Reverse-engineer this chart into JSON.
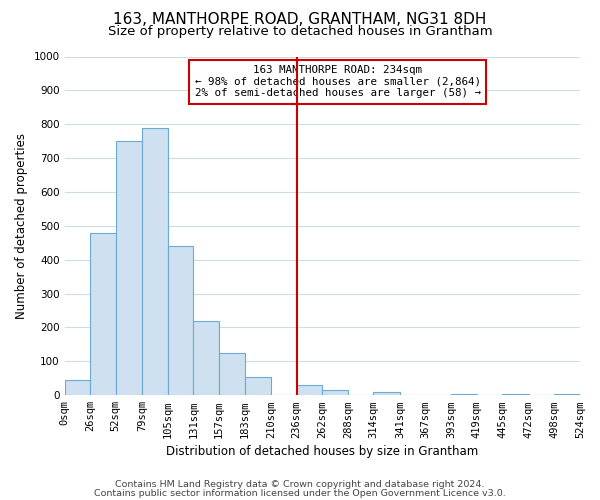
{
  "title": "163, MANTHORPE ROAD, GRANTHAM, NG31 8DH",
  "subtitle": "Size of property relative to detached houses in Grantham",
  "xlabel": "Distribution of detached houses by size in Grantham",
  "ylabel": "Number of detached properties",
  "bar_left_edges": [
    0,
    26,
    52,
    79,
    105,
    131,
    157,
    183,
    210,
    236,
    262,
    288,
    314,
    341,
    367,
    393,
    419,
    445,
    472,
    498
  ],
  "bar_widths": [
    26,
    26,
    27,
    26,
    26,
    26,
    26,
    27,
    26,
    26,
    26,
    26,
    27,
    26,
    26,
    26,
    26,
    27,
    26,
    26
  ],
  "bar_heights": [
    45,
    480,
    750,
    790,
    440,
    220,
    125,
    55,
    0,
    30,
    15,
    0,
    10,
    0,
    0,
    5,
    0,
    5,
    0,
    5
  ],
  "bar_color": "#cfe0f0",
  "bar_edge_color": "#6aaad4",
  "vline_x": 236,
  "vline_color": "#cc0000",
  "annotation_text_line1": "163 MANTHORPE ROAD: 234sqm",
  "annotation_text_line2": "← 98% of detached houses are smaller (2,864)",
  "annotation_text_line3": "2% of semi-detached houses are larger (58) →",
  "ylim": [
    0,
    1000
  ],
  "yticks": [
    0,
    100,
    200,
    300,
    400,
    500,
    600,
    700,
    800,
    900,
    1000
  ],
  "xtick_positions": [
    0,
    26,
    52,
    79,
    105,
    131,
    157,
    183,
    210,
    236,
    262,
    288,
    314,
    341,
    367,
    393,
    419,
    445,
    472,
    498,
    524
  ],
  "xtick_labels": [
    "0sqm",
    "26sqm",
    "52sqm",
    "79sqm",
    "105sqm",
    "131sqm",
    "157sqm",
    "183sqm",
    "210sqm",
    "236sqm",
    "262sqm",
    "288sqm",
    "314sqm",
    "341sqm",
    "367sqm",
    "393sqm",
    "419sqm",
    "445sqm",
    "472sqm",
    "498sqm",
    "524sqm"
  ],
  "xlim": [
    0,
    524
  ],
  "footnote1": "Contains HM Land Registry data © Crown copyright and database right 2024.",
  "footnote2": "Contains public sector information licensed under the Open Government Licence v3.0.",
  "bg_color": "#ffffff",
  "grid_color": "#ccdde8",
  "title_fontsize": 11,
  "subtitle_fontsize": 9.5,
  "axis_label_fontsize": 8.5,
  "tick_fontsize": 7.5,
  "footnote_fontsize": 6.8
}
